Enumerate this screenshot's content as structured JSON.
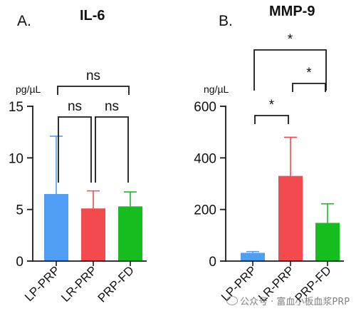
{
  "chart_data": [
    {
      "type": "bar",
      "panel_letter": "A.",
      "title": "IL-6",
      "ylabel": "pg/µL",
      "xlabel": "",
      "ylim": [
        0,
        15
      ],
      "yticks": [
        0,
        5,
        10,
        15
      ],
      "grid": false,
      "categories": [
        "LP-PRP",
        "LR-PRP",
        "PRP-FD"
      ],
      "values": [
        6.5,
        5.1,
        5.3
      ],
      "error_upper": [
        12.1,
        6.8,
        6.7
      ],
      "colors": [
        "#4f9ef5",
        "#f24a4e",
        "#15bd1f"
      ],
      "significance": [
        {
          "from": 0,
          "to": 2,
          "label": "ns"
        },
        {
          "from": 0,
          "to": 1,
          "label": "ns"
        },
        {
          "from": 1,
          "to": 2,
          "label": "ns"
        }
      ]
    },
    {
      "type": "bar",
      "panel_letter": "B.",
      "title": "MMP-9",
      "ylabel": "ng/µL",
      "xlabel": "",
      "ylim": [
        0,
        600
      ],
      "yticks": [
        0,
        200,
        400,
        600
      ],
      "grid": false,
      "categories": [
        "LP-PRP",
        "LR-PRP",
        "PRP-FD"
      ],
      "values": [
        32,
        330,
        148
      ],
      "error_upper": [
        37,
        480,
        222
      ],
      "colors": [
        "#4f9ef5",
        "#f24a4e",
        "#15bd1f"
      ],
      "significance": [
        {
          "from": 0,
          "to": 2,
          "label": "*"
        },
        {
          "from": 1,
          "to": 2,
          "label": "*"
        },
        {
          "from": 0,
          "to": 1,
          "label": "*"
        }
      ]
    }
  ],
  "watermark": {
    "icon": "wechat-icon",
    "text": "公众号 · 富血小板血浆PRP"
  }
}
